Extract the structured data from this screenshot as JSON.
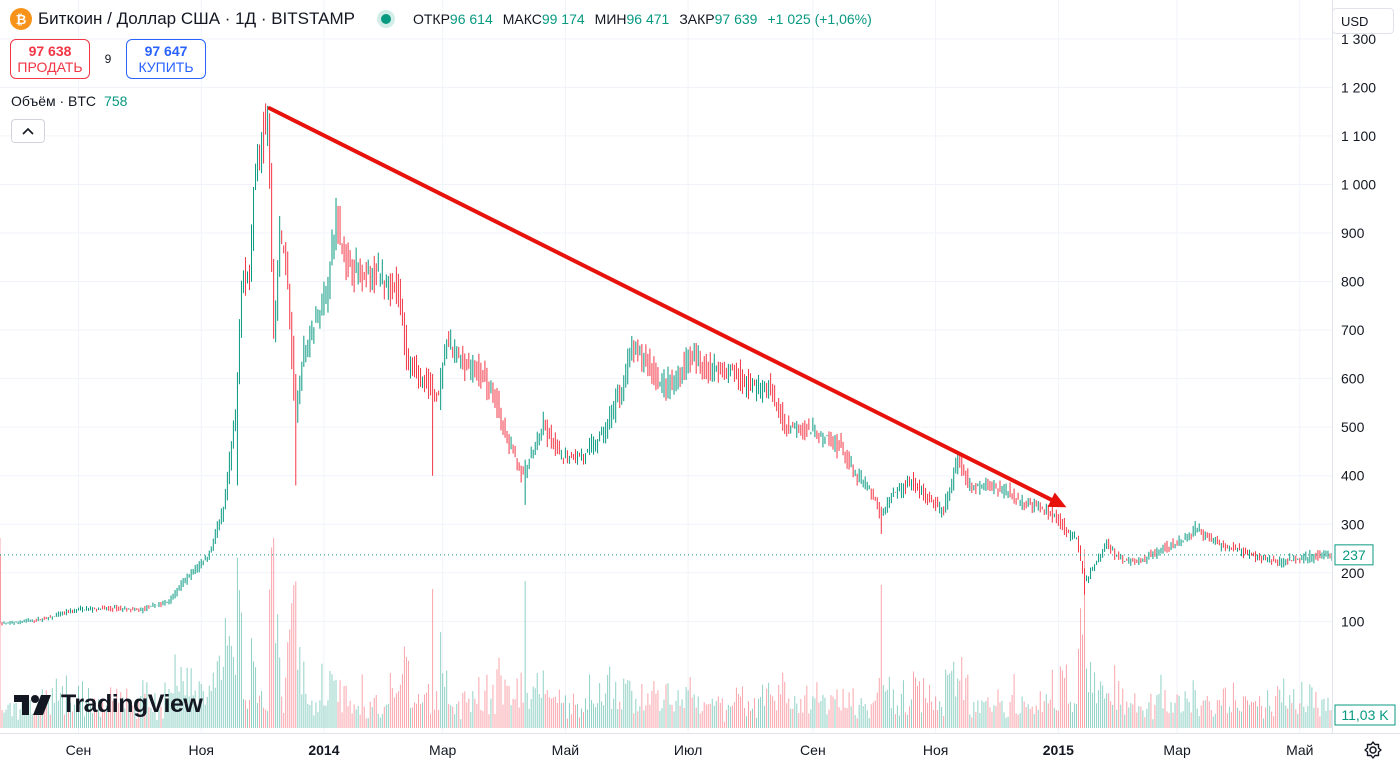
{
  "header": {
    "symbol_icon": "bitcoin-icon",
    "title": "Биткоин / Доллар США · 1Д · BITSTAMP",
    "ohlc": {
      "open_label": "ОТКР",
      "open": "96 614",
      "high_label": "МАКС",
      "high": "99 174",
      "low_label": "МИН",
      "low": "96 471",
      "close_label": "ЗАКР",
      "close": "97 639",
      "change": "+1 025 (+1,06%)"
    }
  },
  "trade": {
    "sell_price": "97 638",
    "sell_label": "ПРОДАТЬ",
    "spread": "9",
    "buy_price": "97 647",
    "buy_label": "КУПИТЬ"
  },
  "volume_legend": {
    "label": "Объём · BTC",
    "value": "758"
  },
  "currency": "USD",
  "branding": "TradingView",
  "colors": {
    "up": "#089981",
    "down": "#f23645",
    "arrow": "#e8120c",
    "grid": "#f0f3fa"
  },
  "chart_data": {
    "type": "candlestick",
    "x_ticks": [
      {
        "label": "Сен",
        "date": "2013-09-01",
        "bold": false
      },
      {
        "label": "Ноя",
        "date": "2013-11-01",
        "bold": false
      },
      {
        "label": "2014",
        "date": "2014-01-01",
        "bold": true
      },
      {
        "label": "Мар",
        "date": "2014-03-01",
        "bold": false
      },
      {
        "label": "Май",
        "date": "2014-05-01",
        "bold": false
      },
      {
        "label": "Июл",
        "date": "2014-07-01",
        "bold": false
      },
      {
        "label": "Сен",
        "date": "2014-09-01",
        "bold": false
      },
      {
        "label": "Ноя",
        "date": "2014-11-01",
        "bold": false
      },
      {
        "label": "2015",
        "date": "2015-01-01",
        "bold": true
      },
      {
        "label": "Мар",
        "date": "2015-03-01",
        "bold": false
      },
      {
        "label": "Май",
        "date": "2015-05-01",
        "bold": false
      }
    ],
    "y_ticks": [
      {
        "value": 100,
        "label": "100"
      },
      {
        "value": 200,
        "label": "200"
      },
      {
        "value": 300,
        "label": "300"
      },
      {
        "value": 400,
        "label": "400"
      },
      {
        "value": 500,
        "label": "500"
      },
      {
        "value": 600,
        "label": "600"
      },
      {
        "value": 700,
        "label": "700"
      },
      {
        "value": 800,
        "label": "800"
      },
      {
        "value": 900,
        "label": "900"
      },
      {
        "value": 1000,
        "label": "1 000"
      },
      {
        "value": 1100,
        "label": "1 100"
      },
      {
        "value": 1200,
        "label": "1 200"
      },
      {
        "value": 1300,
        "label": "1 300"
      }
    ],
    "ylim": [
      -130,
      1380
    ],
    "x_range": [
      "2013-07-24",
      "2015-05-17"
    ],
    "last_price": {
      "value": 237,
      "label": "237"
    },
    "volume_last_label": "11,03 K",
    "trend_arrow": {
      "from": [
        "2013-12-05",
        1157
      ],
      "to": [
        "2015-01-05",
        335
      ]
    },
    "price_path": [
      [
        "2013-07-24",
        95
      ],
      [
        "2013-08-15",
        105
      ],
      [
        "2013-09-01",
        125
      ],
      [
        "2013-09-20",
        127
      ],
      [
        "2013-10-01",
        122
      ],
      [
        "2013-10-15",
        140
      ],
      [
        "2013-10-25",
        190
      ],
      [
        "2013-11-05",
        240
      ],
      [
        "2013-11-12",
        330
      ],
      [
        "2013-11-18",
        520
      ],
      [
        "2013-11-21",
        800
      ],
      [
        "2013-11-25",
        820
      ],
      [
        "2013-11-28",
        1050
      ],
      [
        "2013-12-04",
        1140
      ],
      [
        "2013-12-07",
        700
      ],
      [
        "2013-12-10",
        900
      ],
      [
        "2013-12-13",
        850
      ],
      [
        "2013-12-18",
        520
      ],
      [
        "2013-12-22",
        650
      ],
      [
        "2013-12-28",
        720
      ],
      [
        "2014-01-03",
        800
      ],
      [
        "2014-01-07",
        930
      ],
      [
        "2014-01-12",
        840
      ],
      [
        "2014-01-20",
        820
      ],
      [
        "2014-01-30",
        810
      ],
      [
        "2014-02-07",
        780
      ],
      [
        "2014-02-12",
        620
      ],
      [
        "2014-02-20",
        600
      ],
      [
        "2014-02-27",
        560
      ],
      [
        "2014-03-03",
        680
      ],
      [
        "2014-03-10",
        640
      ],
      [
        "2014-03-20",
        610
      ],
      [
        "2014-03-27",
        560
      ],
      [
        "2014-04-01",
        480
      ],
      [
        "2014-04-10",
        400
      ],
      [
        "2014-04-13",
        430
      ],
      [
        "2014-04-20",
        500
      ],
      [
        "2014-04-28",
        440
      ],
      [
        "2014-05-10",
        440
      ],
      [
        "2014-05-20",
        490
      ],
      [
        "2014-05-28",
        570
      ],
      [
        "2014-06-03",
        660
      ],
      [
        "2014-06-10",
        640
      ],
      [
        "2014-06-17",
        590
      ],
      [
        "2014-06-25",
        590
      ],
      [
        "2014-07-01",
        645
      ],
      [
        "2014-07-10",
        625
      ],
      [
        "2014-07-20",
        620
      ],
      [
        "2014-07-30",
        590
      ],
      [
        "2014-08-10",
        580
      ],
      [
        "2014-08-18",
        500
      ],
      [
        "2014-08-25",
        505
      ],
      [
        "2014-09-05",
        480
      ],
      [
        "2014-09-15",
        460
      ],
      [
        "2014-09-22",
        400
      ],
      [
        "2014-09-28",
        380
      ],
      [
        "2014-10-05",
        320
      ],
      [
        "2014-10-10",
        360
      ],
      [
        "2014-10-20",
        390
      ],
      [
        "2014-10-30",
        340
      ],
      [
        "2014-11-05",
        330
      ],
      [
        "2014-11-12",
        430
      ],
      [
        "2014-11-18",
        375
      ],
      [
        "2014-11-25",
        380
      ],
      [
        "2014-12-05",
        370
      ],
      [
        "2014-12-15",
        345
      ],
      [
        "2014-12-30",
        320
      ],
      [
        "2015-01-05",
        285
      ],
      [
        "2015-01-10",
        270
      ],
      [
        "2015-01-14",
        180
      ],
      [
        "2015-01-18",
        210
      ],
      [
        "2015-01-25",
        260
      ],
      [
        "2015-02-01",
        225
      ],
      [
        "2015-02-10",
        225
      ],
      [
        "2015-02-20",
        245
      ],
      [
        "2015-03-01",
        260
      ],
      [
        "2015-03-10",
        290
      ],
      [
        "2015-03-15",
        280
      ],
      [
        "2015-03-22",
        260
      ],
      [
        "2015-04-01",
        245
      ],
      [
        "2015-04-10",
        235
      ],
      [
        "2015-04-20",
        222
      ],
      [
        "2015-05-01",
        232
      ],
      [
        "2015-05-17",
        237
      ]
    ]
  }
}
